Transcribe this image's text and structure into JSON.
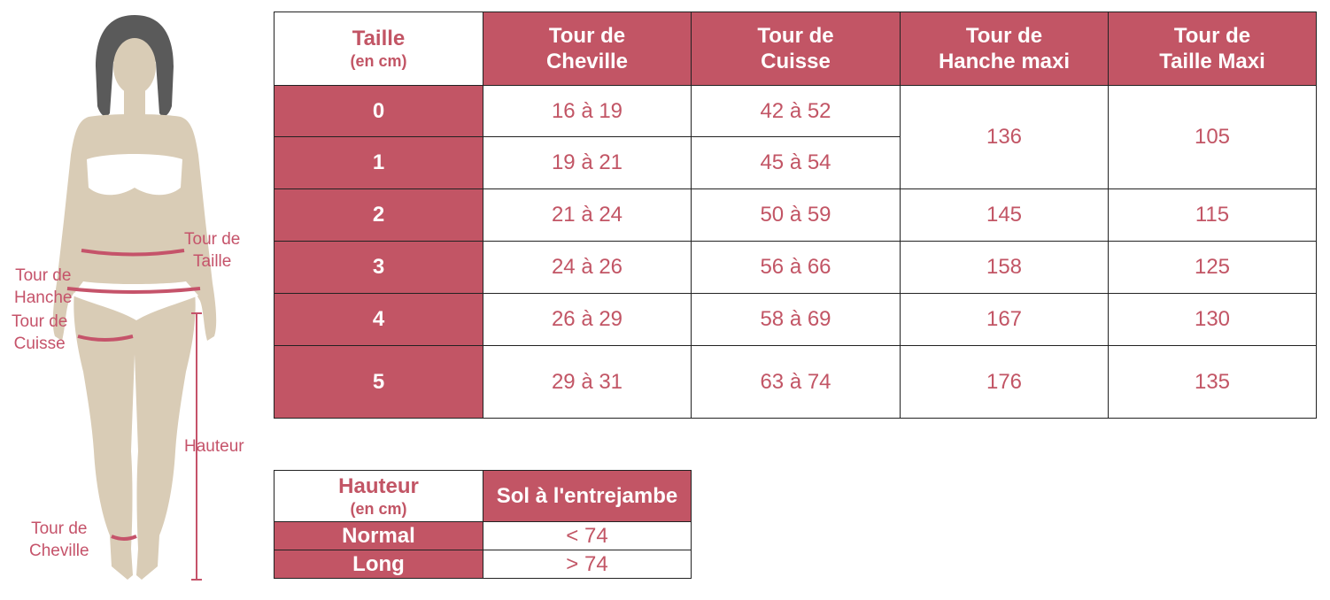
{
  "figure": {
    "labels": {
      "waist": [
        "Tour de",
        "Taille"
      ],
      "hip": [
        "Tour de",
        "Hanche"
      ],
      "thigh": [
        "Tour de",
        "Cuisse"
      ],
      "height": "Hauteur",
      "ankle": [
        "Tour de",
        "Cheville"
      ]
    }
  },
  "size_table": {
    "corner_title": "Taille",
    "corner_unit": "(en cm)",
    "columns": [
      [
        "Tour de",
        "Cheville"
      ],
      [
        "Tour de",
        "Cuisse"
      ],
      [
        "Tour de",
        "Hanche maxi"
      ],
      [
        "Tour de",
        "Taille Maxi"
      ]
    ],
    "rows": [
      {
        "size": "0",
        "ankle": "16 à 19",
        "thigh": "42 à 52"
      },
      {
        "size": "1",
        "ankle": "19 à 21",
        "thigh": "45 à 54"
      },
      {
        "size": "2",
        "ankle": "21 à 24",
        "thigh": "50 à 59",
        "hip": "145",
        "waist": "115"
      },
      {
        "size": "3",
        "ankle": "24 à 26",
        "thigh": "56 à 66",
        "hip": "158",
        "waist": "125"
      },
      {
        "size": "4",
        "ankle": "26 à 29",
        "thigh": "58 à 69",
        "hip": "167",
        "waist": "130"
      },
      {
        "size": "5",
        "ankle": "29 à 31",
        "thigh": "63 à 74",
        "hip": "176",
        "waist": "135"
      }
    ],
    "merged_hip_0_1": "136",
    "merged_waist_0_1": "105"
  },
  "height_table": {
    "corner_title": "Hauteur",
    "corner_unit": "(en cm)",
    "column": "Sol à l'entrejambe",
    "rows": [
      {
        "label": "Normal",
        "value": "< 74"
      },
      {
        "label": "Long",
        "value": "> 74"
      }
    ]
  },
  "colors": {
    "accent": "#c25565",
    "skin": "#d9ccb6",
    "hair": "#5a5a5a",
    "label": "#c5536a"
  }
}
